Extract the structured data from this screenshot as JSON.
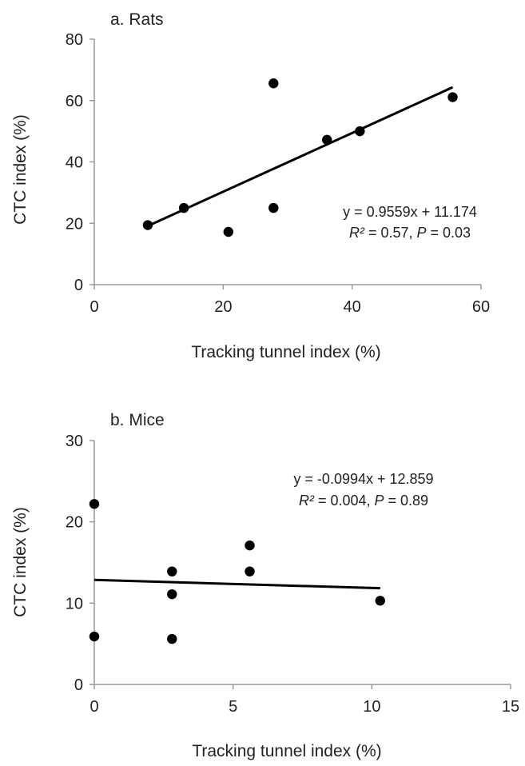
{
  "chart_data": [
    {
      "type": "scatter",
      "title": "a.  Rats",
      "xlabel": "Tracking tunnel index (%)",
      "ylabel": "CTC index (%)",
      "xlim": [
        0,
        60
      ],
      "ylim": [
        0,
        80
      ],
      "xticks": [
        0,
        20,
        40,
        60
      ],
      "yticks": [
        0,
        20,
        40,
        60,
        80
      ],
      "grid": false,
      "series": [
        {
          "points": [
            {
              "x": 8.3,
              "y": 19.4
            },
            {
              "x": 13.9,
              "y": 25.0
            },
            {
              "x": 20.8,
              "y": 17.2
            },
            {
              "x": 27.8,
              "y": 65.6
            },
            {
              "x": 27.8,
              "y": 25.0
            },
            {
              "x": 36.1,
              "y": 47.2
            },
            {
              "x": 41.2,
              "y": 50.0
            },
            {
              "x": 55.6,
              "y": 61.1
            }
          ]
        }
      ],
      "trendline": {
        "slope": 0.9559,
        "intercept": 11.174,
        "x_range": [
          8.3,
          55.6
        ]
      },
      "annotation": {
        "line1": "y = 0.9559x + 11.174",
        "r2_label": "R²",
        "r2_value": " = 0.57, ",
        "p_label": "P",
        "p_value": " = 0.03"
      },
      "color": "#000000"
    },
    {
      "type": "scatter",
      "title": "b.  Mice",
      "xlabel": "Tracking tunnel index (%)",
      "ylabel": "CTC index (%)",
      "xlim": [
        0,
        15
      ],
      "ylim": [
        0,
        30
      ],
      "xticks": [
        0,
        5,
        10,
        15
      ],
      "yticks": [
        0,
        10,
        20,
        30
      ],
      "grid": false,
      "series": [
        {
          "points": [
            {
              "x": 0.0,
              "y": 22.2
            },
            {
              "x": 0.0,
              "y": 5.9
            },
            {
              "x": 2.8,
              "y": 13.9
            },
            {
              "x": 2.8,
              "y": 11.1
            },
            {
              "x": 2.8,
              "y": 5.6
            },
            {
              "x": 5.6,
              "y": 17.1
            },
            {
              "x": 5.6,
              "y": 13.9
            },
            {
              "x": 10.3,
              "y": 10.3
            }
          ]
        }
      ],
      "trendline": {
        "slope": -0.0994,
        "intercept": 12.859,
        "x_range": [
          0,
          10.3
        ]
      },
      "annotation": {
        "line1": "y = -0.0994x + 12.859",
        "r2_label": "R²",
        "r2_value": " = 0.004, ",
        "p_label": "P",
        "p_value": " = 0.89"
      },
      "color": "#000000"
    }
  ]
}
